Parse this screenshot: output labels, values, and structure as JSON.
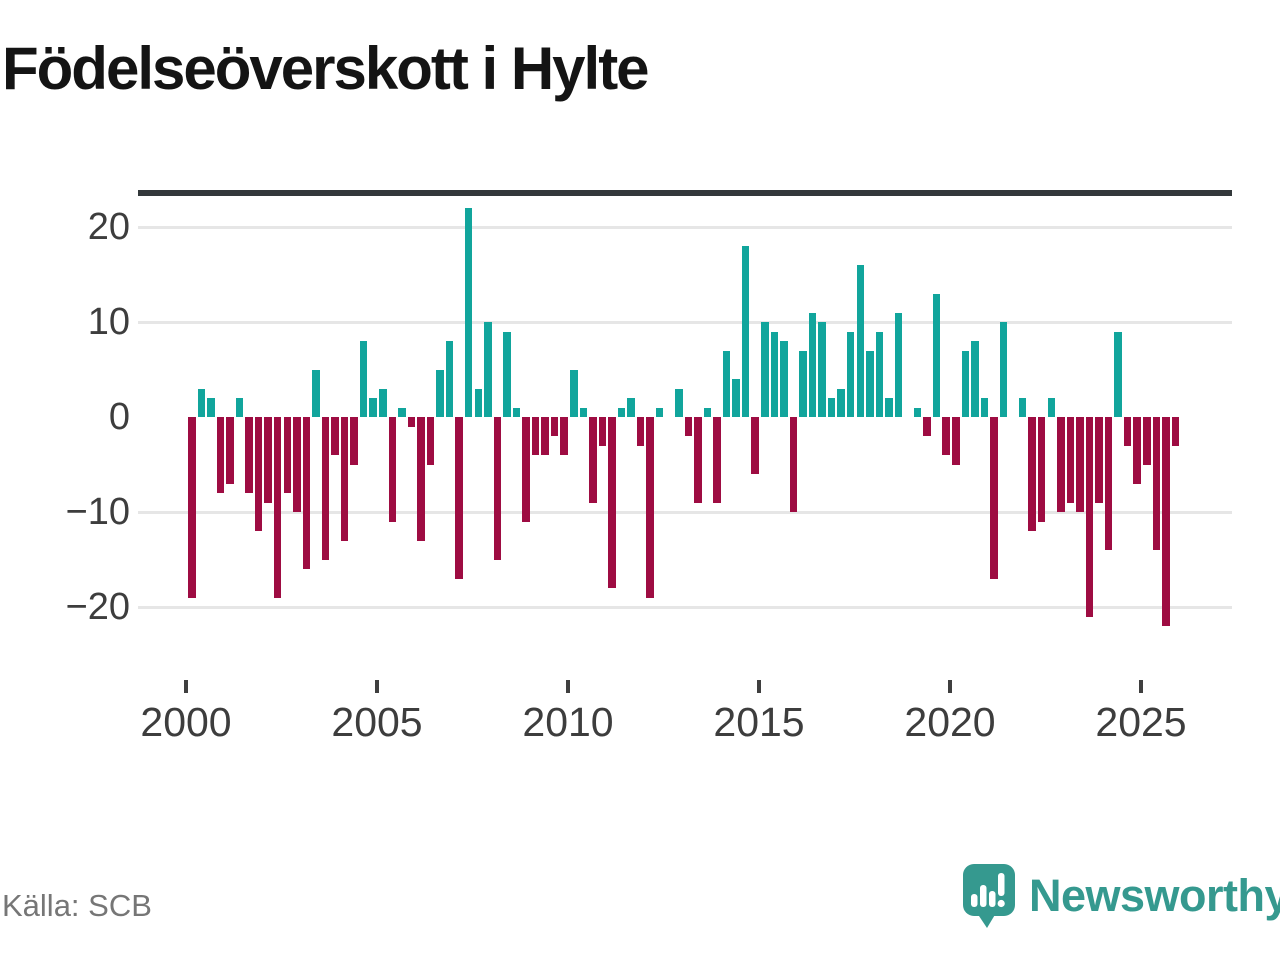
{
  "title": "Födelseöverskott i Hylte",
  "source": "Källa: SCB",
  "branding": {
    "wordmark": "Newsworthy",
    "logo_icon": "speech-bubble-bar-chart"
  },
  "colors": {
    "positive_bar": "#11a59c",
    "negative_bar": "#9e0c42",
    "zero_axis": "#33383b",
    "gridline": "#e6e6e6",
    "axis_text": "#3d3d3d",
    "title_text": "#141414",
    "source_text": "#767676",
    "brand_teal": "#35998f"
  },
  "y_axis": {
    "ticks": [
      {
        "value": 20,
        "label": "20"
      },
      {
        "value": 10,
        "label": "10"
      },
      {
        "value": 0,
        "label": "0"
      },
      {
        "value": -10,
        "label": "−10"
      },
      {
        "value": -20,
        "label": "−20"
      }
    ]
  },
  "x_axis": {
    "ticks": [
      {
        "year": 2000,
        "label": "2000"
      },
      {
        "year": 2005,
        "label": "2005"
      },
      {
        "year": 2010,
        "label": "2010"
      },
      {
        "year": 2015,
        "label": "2015"
      },
      {
        "year": 2020,
        "label": "2020"
      },
      {
        "year": 2025,
        "label": "2025"
      }
    ]
  },
  "chart_data": {
    "type": "bar",
    "title": "Födelseöverskott i Hylte",
    "xlabel": "",
    "ylabel": "",
    "ylim": [
      -24,
      23
    ],
    "grid": "horizontal",
    "legend": "none",
    "unit": "quarterly values, persons",
    "years": [
      {
        "year": 2000,
        "values": [
          -19,
          3,
          2,
          -8
        ]
      },
      {
        "year": 2001,
        "values": [
          -7,
          2,
          -8,
          -12
        ]
      },
      {
        "year": 2002,
        "values": [
          -9,
          -19,
          -8,
          -10
        ]
      },
      {
        "year": 2003,
        "values": [
          -16,
          5,
          -15,
          -4
        ]
      },
      {
        "year": 2004,
        "values": [
          -13,
          -5,
          8,
          2
        ]
      },
      {
        "year": 2005,
        "values": [
          3,
          -11,
          1,
          -1
        ]
      },
      {
        "year": 2006,
        "values": [
          -13,
          -5,
          5,
          8
        ]
      },
      {
        "year": 2007,
        "values": [
          -17,
          22,
          3,
          10
        ]
      },
      {
        "year": 2008,
        "values": [
          -15,
          9,
          1,
          -11
        ]
      },
      {
        "year": 2009,
        "values": [
          -4,
          -4,
          -2,
          -4
        ]
      },
      {
        "year": 2010,
        "values": [
          5,
          1,
          -9,
          -3
        ]
      },
      {
        "year": 2011,
        "values": [
          -18,
          1,
          2,
          -3
        ]
      },
      {
        "year": 2012,
        "values": [
          -19,
          1,
          0,
          3
        ]
      },
      {
        "year": 2013,
        "values": [
          -2,
          -9,
          1,
          -9
        ]
      },
      {
        "year": 2014,
        "values": [
          7,
          4,
          18,
          -6
        ]
      },
      {
        "year": 2015,
        "values": [
          10,
          9,
          8,
          -10
        ]
      },
      {
        "year": 2016,
        "values": [
          7,
          11,
          10,
          2
        ]
      },
      {
        "year": 2017,
        "values": [
          3,
          9,
          16,
          7
        ]
      },
      {
        "year": 2018,
        "values": [
          9,
          2,
          11,
          0
        ]
      },
      {
        "year": 2019,
        "values": [
          1,
          -2,
          13,
          -4
        ]
      },
      {
        "year": 2020,
        "values": [
          -5,
          7,
          8,
          2
        ]
      },
      {
        "year": 2021,
        "values": [
          -17,
          10,
          0,
          2
        ]
      },
      {
        "year": 2022,
        "values": [
          -12,
          -11,
          2,
          -10
        ]
      },
      {
        "year": 2023,
        "values": [
          -9,
          -10,
          -21,
          -9
        ]
      },
      {
        "year": 2024,
        "values": [
          -14,
          9,
          -3,
          -7
        ]
      },
      {
        "year": 2025,
        "values": [
          -5,
          -14,
          -22,
          -3
        ]
      }
    ]
  }
}
